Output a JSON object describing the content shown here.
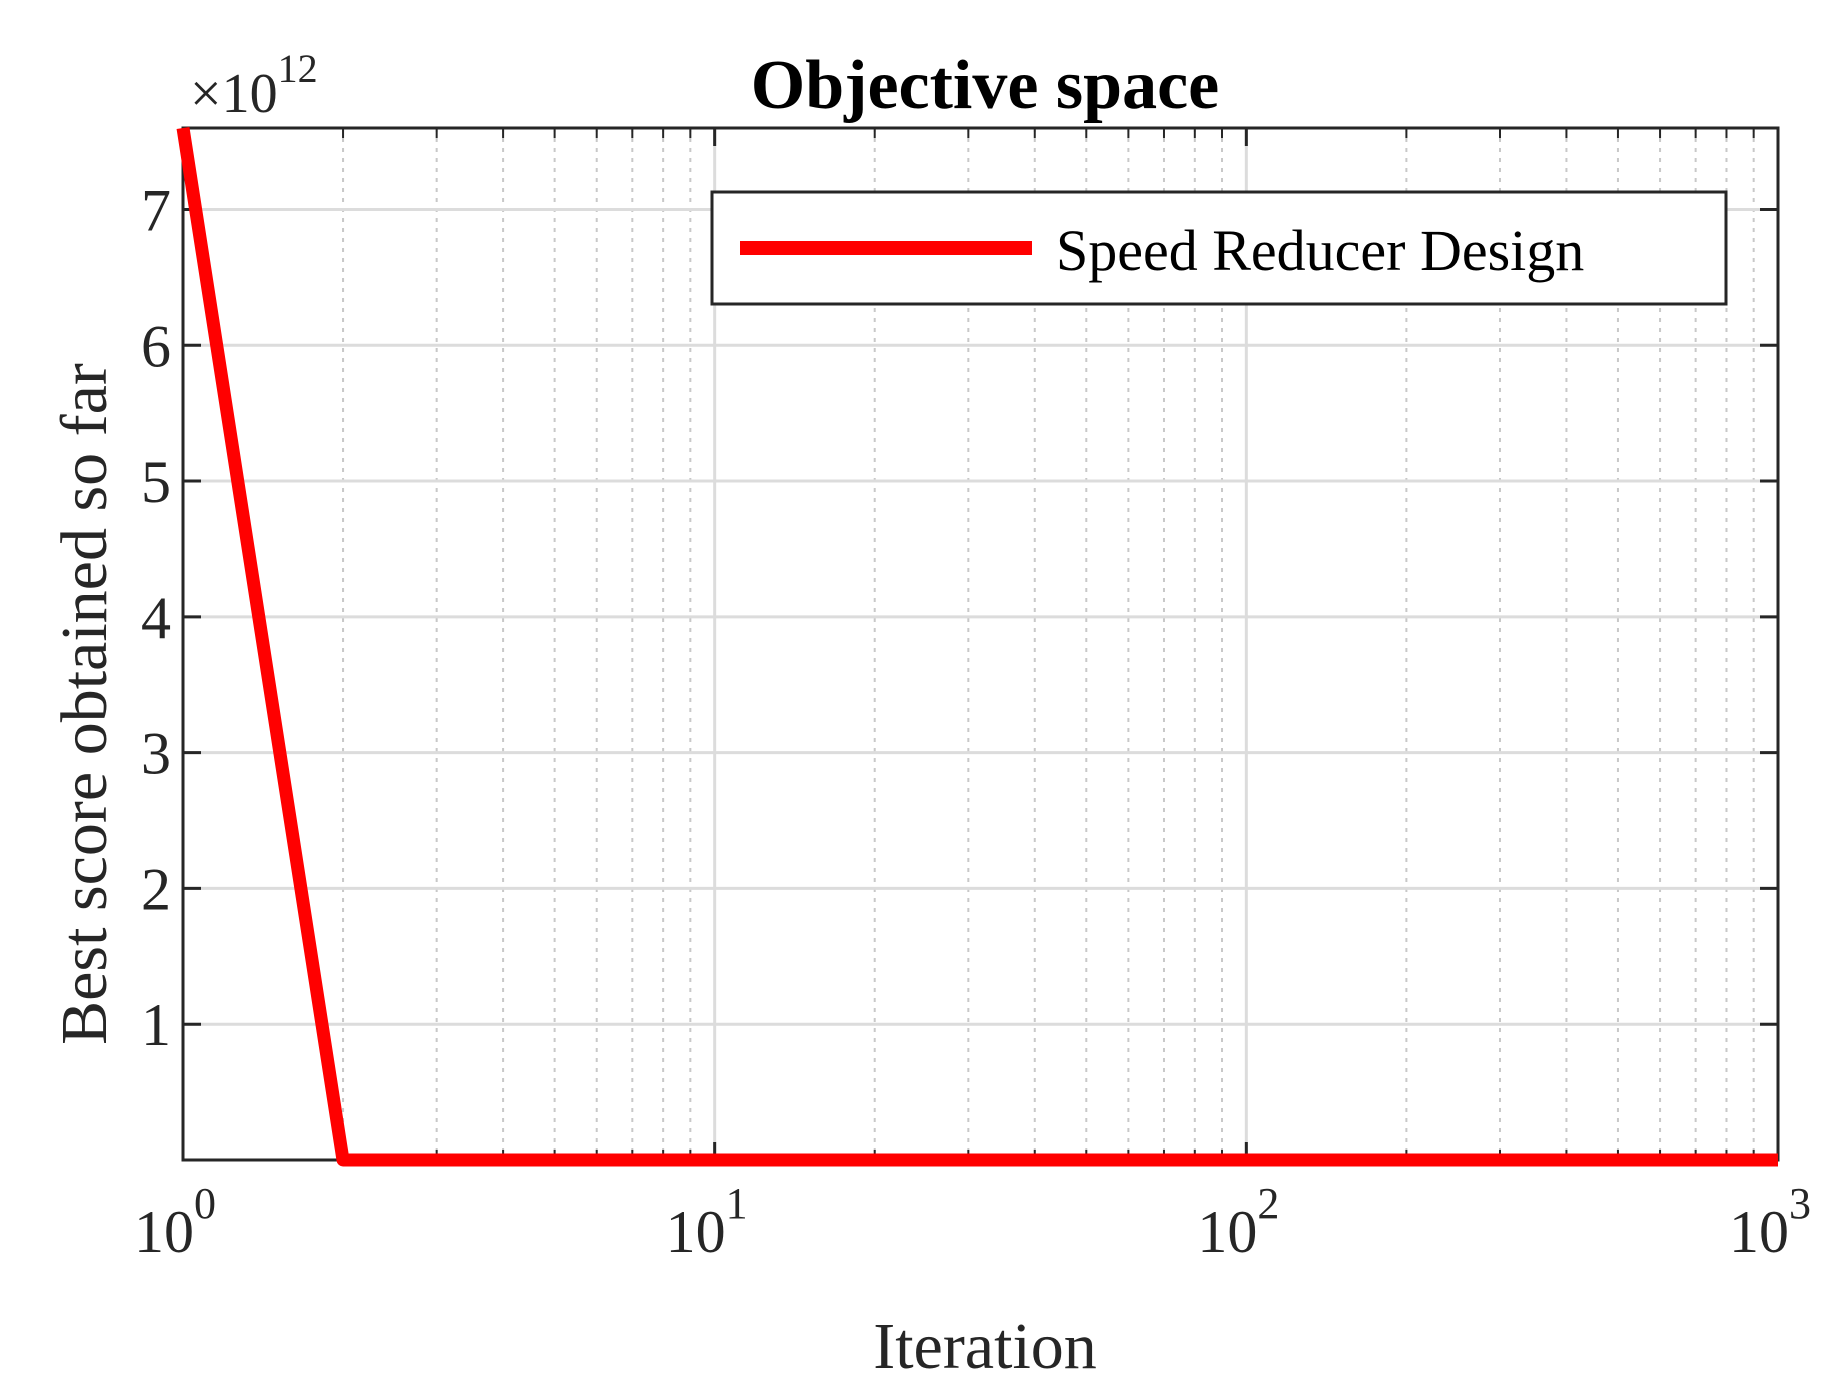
{
  "chart_data": {
    "type": "line",
    "title": "Objective space",
    "xlabel": "Iteration",
    "ylabel": "Best score obtained so far",
    "y_exponent_label": "×10",
    "y_exponent_power": "12",
    "x_scale": "log",
    "xlim": [
      1,
      1000
    ],
    "ylim": [
      0,
      7.6
    ],
    "y_unit_multiplier": 1000000000000.0,
    "grid": true,
    "minor_grid": true,
    "legend": {
      "placement": "top-right",
      "entries": [
        "Speed Reducer Design"
      ]
    },
    "x_ticks": [
      {
        "value": 1,
        "base": "10",
        "power": "0"
      },
      {
        "value": 10,
        "base": "10",
        "power": "1"
      },
      {
        "value": 100,
        "base": "10",
        "power": "2"
      },
      {
        "value": 1000,
        "base": "10",
        "power": "3"
      }
    ],
    "y_ticks": [
      {
        "value": 1,
        "label": "1"
      },
      {
        "value": 2,
        "label": "2"
      },
      {
        "value": 3,
        "label": "3"
      },
      {
        "value": 4,
        "label": "4"
      },
      {
        "value": 5,
        "label": "5"
      },
      {
        "value": 6,
        "label": "6"
      },
      {
        "value": 7,
        "label": "7"
      }
    ],
    "series": [
      {
        "name": "Speed Reducer Design",
        "color": "#ff0000",
        "points": [
          {
            "x": 1,
            "y": 7.6
          },
          {
            "x": 2,
            "y": 0.0
          },
          {
            "x": 1000,
            "y": 0.0
          }
        ]
      }
    ]
  }
}
